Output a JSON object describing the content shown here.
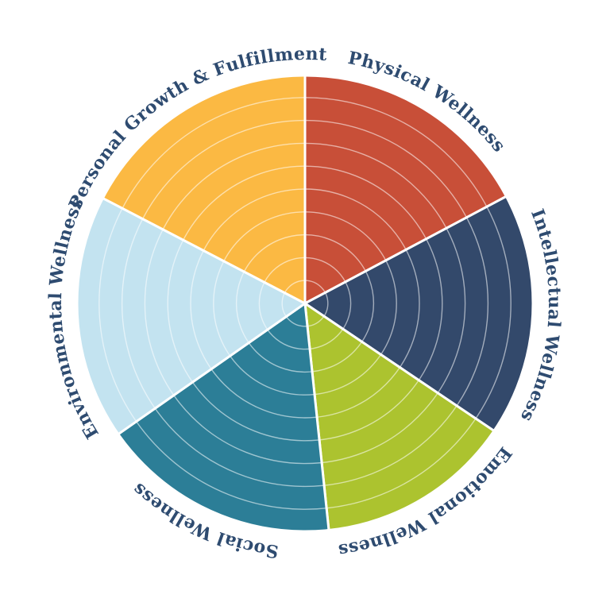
{
  "background_color": "#FFFFFF",
  "chart_data": {
    "type": "pie",
    "title": "",
    "legend_position": "labels-curved-around-rim",
    "rings": 10,
    "segments": [
      {
        "label": "Physical Wellness",
        "color": "#C84F38",
        "start_angle_deg": 0,
        "end_angle_deg": 62
      },
      {
        "label": "Intellectual Wellness",
        "color": "#33496B",
        "start_angle_deg": 62,
        "end_angle_deg": 124
      },
      {
        "label": "Emotional Wellness",
        "color": "#ACC32F",
        "start_angle_deg": 124,
        "end_angle_deg": 174
      },
      {
        "label": "Social Wellness",
        "color": "#2C7E97",
        "start_angle_deg": 174,
        "end_angle_deg": 235
      },
      {
        "label": "Environmental Wellness",
        "color": "#C3E3F0",
        "start_angle_deg": 235,
        "end_angle_deg": 297.5
      },
      {
        "label": "Personal Growth & Fulfillment",
        "color": "#FBB943",
        "start_angle_deg": 297.5,
        "end_angle_deg": 360
      }
    ],
    "label_color": "#2E4B70",
    "separator_color": "#FFFFFF",
    "ring_line_color": "rgba(255,255,255,0.55)",
    "outer_ring_color": "#FFFFFF"
  }
}
